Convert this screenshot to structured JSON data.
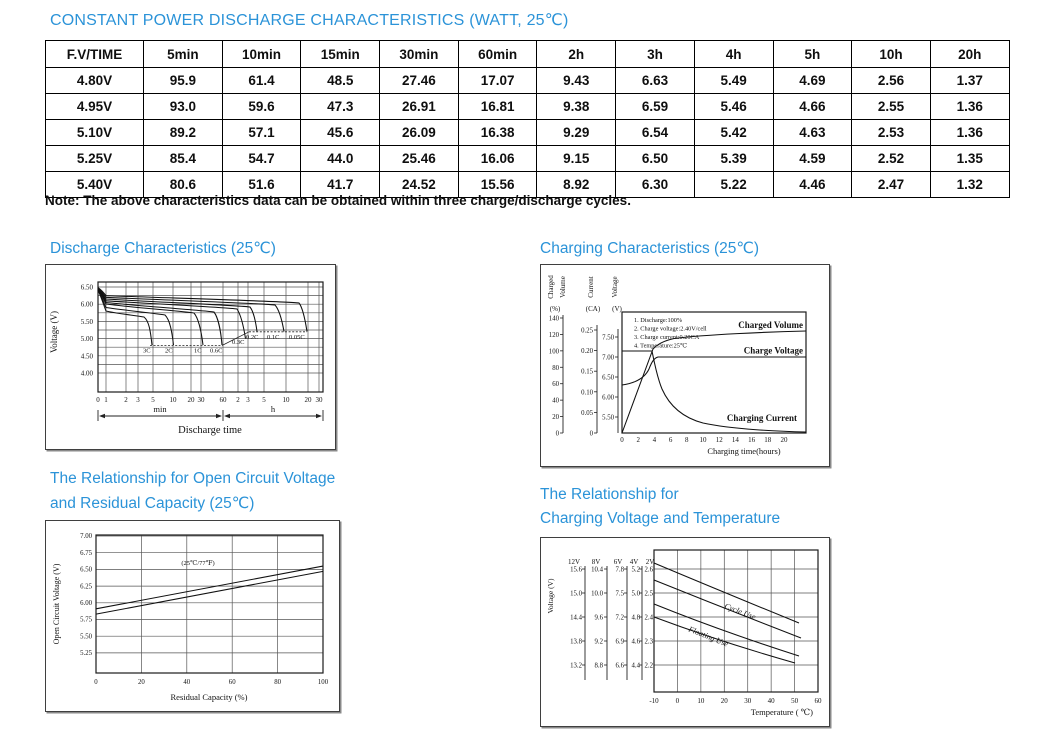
{
  "page": {
    "title": "CONSTANT POWER DISCHARGE CHARACTERISTICS (WATT, 25℃)",
    "note": "Note: The above characteristics data can be obtained within three charge/discharge cycles.",
    "accent_color": "#2b93d8"
  },
  "table": {
    "header": [
      "F.V/TIME",
      "5min",
      "10min",
      "15min",
      "30min",
      "60min",
      "2h",
      "3h",
      "4h",
      "5h",
      "10h",
      "20h"
    ],
    "rows": [
      {
        "label": "4.80V",
        "values": [
          "95.9",
          "61.4",
          "48.5",
          "27.46",
          "17.07",
          "9.43",
          "6.63",
          "5.49",
          "4.69",
          "2.56",
          "1.37"
        ]
      },
      {
        "label": "4.95V",
        "values": [
          "93.0",
          "59.6",
          "47.3",
          "26.91",
          "16.81",
          "9.38",
          "6.59",
          "5.46",
          "4.66",
          "2.55",
          "1.36"
        ]
      },
      {
        "label": "5.10V",
        "values": [
          "89.2",
          "57.1",
          "45.6",
          "26.09",
          "16.38",
          "9.29",
          "6.54",
          "5.42",
          "4.63",
          "2.53",
          "1.36"
        ]
      },
      {
        "label": "5.25V",
        "values": [
          "85.4",
          "54.7",
          "44.0",
          "25.46",
          "16.06",
          "9.15",
          "6.50",
          "5.39",
          "4.59",
          "2.52",
          "1.35"
        ]
      },
      {
        "label": "5.40V",
        "values": [
          "80.6",
          "51.6",
          "41.7",
          "24.52",
          "15.56",
          "8.92",
          "6.30",
          "5.22",
          "4.46",
          "2.47",
          "1.32"
        ]
      }
    ]
  },
  "chart_data": [
    {
      "id": "discharge",
      "type": "line",
      "title": "Discharge Characteristics (25℃)",
      "ylabel": "Voltage (V)",
      "xlabel": "Discharge time",
      "x_units": [
        "min",
        "h"
      ],
      "ylim": [
        3.8,
        6.65
      ],
      "yticks": [
        "6.50",
        "6.00",
        "5.50",
        "5.00",
        "4.50",
        "4.00"
      ],
      "xticks_min": [
        "0",
        "1",
        "2",
        "3",
        "5",
        "10",
        "20",
        "30",
        "60"
      ],
      "xticks_h": [
        "2",
        "3",
        "5",
        "10",
        "20",
        "30"
      ],
      "series_labels": [
        "3C",
        "2C",
        "1C",
        "0.6C",
        "0.3C",
        "0.2C",
        "0.1C",
        "0.05C"
      ],
      "series": [
        {
          "name": "3C",
          "start_v": 5.8,
          "cutoff_v": 4.8,
          "end_time_min": 5.5
        },
        {
          "name": "2C",
          "start_v": 5.9,
          "cutoff_v": 4.8,
          "end_time_min": 12
        },
        {
          "name": "1C",
          "start_v": 6.0,
          "cutoff_v": 4.8,
          "end_time_min": 32
        },
        {
          "name": "0.6C",
          "start_v": 6.1,
          "cutoff_v": 4.8,
          "end_time_min": 60
        },
        {
          "name": "0.3C",
          "start_v": 6.2,
          "cutoff_v": 5.0,
          "end_time_h": 2.8
        },
        {
          "name": "0.2C",
          "start_v": 6.25,
          "cutoff_v": 5.2,
          "end_time_h": 4
        },
        {
          "name": "0.1C",
          "start_v": 6.3,
          "cutoff_v": 5.2,
          "end_time_h": 9
        },
        {
          "name": "0.05C",
          "start_v": 6.35,
          "cutoff_v": 5.2,
          "end_time_h": 19
        }
      ]
    },
    {
      "id": "charging",
      "type": "line",
      "title": "Charging Characteristics (25℃)",
      "xlabel": "Charging time(hours)",
      "xticks": [
        "0",
        "2",
        "4",
        "6",
        "8",
        "10",
        "12",
        "14",
        "16",
        "18",
        "20"
      ],
      "axes": [
        {
          "label": "Charged Volume",
          "unit": "(%)",
          "ticks": [
            "0",
            "20",
            "40",
            "60",
            "80",
            "100",
            "120",
            "140"
          ]
        },
        {
          "label": "Current",
          "unit": "(CA)",
          "ticks": [
            "0",
            "0.05",
            "0.10",
            "0.15",
            "0.20",
            "0.25"
          ]
        },
        {
          "label": "Voltage",
          "unit": "(V)",
          "ticks": [
            "5.50",
            "6.00",
            "6.50",
            "7.00",
            "7.50"
          ]
        }
      ],
      "notes": [
        "1. Discharge:100%",
        "2. Charge voltage:2.40V/cell",
        "3. Charge current:0.20CA",
        "4. Temperature:25℃"
      ],
      "curve_labels": [
        "Charged Volume",
        "Charge Voltage",
        "Charging Current"
      ],
      "series": [
        {
          "name": "Charged Volume",
          "unit": "%",
          "points": [
            [
              0,
              0
            ],
            [
              3.7,
              96
            ],
            [
              8,
              105
            ],
            [
              12,
              109
            ],
            [
              16,
              111
            ],
            [
              20,
              112
            ]
          ]
        },
        {
          "name": "Charge Voltage",
          "unit": "V",
          "points": [
            [
              0,
              6.3
            ],
            [
              2,
              6.45
            ],
            [
              3,
              6.6
            ],
            [
              4,
              7.0
            ],
            [
              8,
              7.05
            ],
            [
              20,
              7.05
            ]
          ]
        },
        {
          "name": "Charging Current",
          "unit": "CA",
          "points": [
            [
              0,
              0.2
            ],
            [
              3.7,
              0.2
            ],
            [
              6,
              0.09
            ],
            [
              10,
              0.04
            ],
            [
              16,
              0.02
            ],
            [
              20,
              0.015
            ]
          ]
        }
      ]
    },
    {
      "id": "ocv-residual-capacity",
      "type": "line",
      "title": "The Relationship for Open Circuit Voltage and Residual Capacity (25℃)",
      "title_lines": [
        "The Relationship for Open Circuit Voltage",
        "and Residual Capacity (25℃)"
      ],
      "ylabel": "Open Circuit Voltage (V)",
      "xlabel": "Residual Capacity (%)",
      "annotation": "(25℃/77℉)",
      "yticks": [
        "7.00",
        "6.75",
        "6.50",
        "6.25",
        "6.00",
        "5.75",
        "5.50",
        "5.25"
      ],
      "xticks": [
        "0",
        "20",
        "40",
        "60",
        "80",
        "100"
      ],
      "series": [
        {
          "name": "upper",
          "points": [
            [
              0,
              5.91
            ],
            [
              100,
              6.55
            ]
          ]
        },
        {
          "name": "lower",
          "points": [
            [
              0,
              5.83
            ],
            [
              100,
              6.47
            ]
          ]
        }
      ]
    },
    {
      "id": "charging-voltage-temperature",
      "type": "line",
      "title": "The Relationship for Charging Voltage and Temperature",
      "title_lines": [
        "The Relationship for",
        "Charging Voltage and Temperature"
      ],
      "ylabel": "Voltage (V)",
      "xlabel": "Temperature ( ℃)",
      "scale_headers": [
        "12V",
        "8V",
        "6V",
        "4V",
        "2V"
      ],
      "scales": [
        [
          "15.6",
          "15.0",
          "14.4",
          "13.8",
          "13.2"
        ],
        [
          "10.4",
          "10.0",
          "9.6",
          "9.2",
          "8.8"
        ],
        [
          "7.8",
          "7.5",
          "7.2",
          "6.9",
          "6.6"
        ],
        [
          "5.2",
          "5.0",
          "4.8",
          "4.6",
          "4.4"
        ],
        [
          "2.6",
          "2.5",
          "2.4",
          "2.3",
          "2.2"
        ]
      ],
      "xticks": [
        "-10",
        "0",
        "10",
        "20",
        "30",
        "40",
        "50",
        "60"
      ],
      "band_labels": [
        "Cycle Use",
        "Floating Use"
      ],
      "series_2v": [
        {
          "name": "cycle-upper",
          "points": [
            [
              -10,
              2.625
            ],
            [
              50,
              2.375
            ]
          ]
        },
        {
          "name": "cycle-lower",
          "points": [
            [
              -10,
              2.555
            ],
            [
              52,
              2.31
            ]
          ]
        },
        {
          "name": "floating-upper",
          "points": [
            [
              -10,
              2.455
            ],
            [
              52,
              2.235
            ]
          ]
        },
        {
          "name": "floating-lower",
          "points": [
            [
              -10,
              2.4
            ],
            [
              50,
              2.21
            ]
          ]
        }
      ]
    }
  ]
}
